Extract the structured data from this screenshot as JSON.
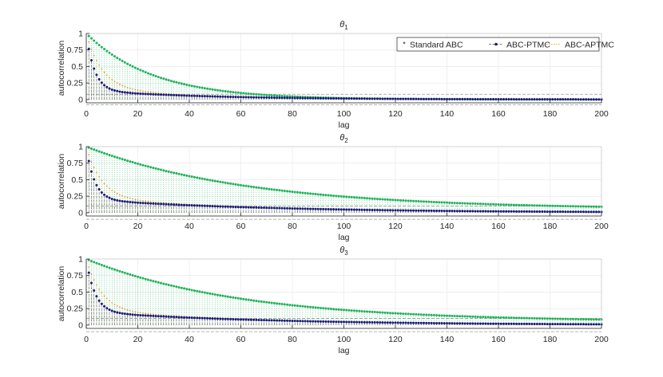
{
  "chart_data": [
    {
      "type": "stem",
      "title": "θ",
      "title_subscript": "1",
      "xlabel": "lag",
      "ylabel": "autocorrelation",
      "xlim": [
        0,
        200
      ],
      "ylim": [
        -0.05,
        1
      ],
      "xticks": [
        0,
        20,
        40,
        60,
        80,
        100,
        120,
        140,
        160,
        180,
        200
      ],
      "yticks": [
        0,
        0.25,
        0.5,
        0.75,
        1
      ],
      "ytick_labels": [
        "0",
        "0.25",
        "0.5",
        "0.75",
        "1"
      ],
      "grid": true,
      "legend_position": "top-right",
      "confidence_bounds": [
        0.08,
        -0.08
      ],
      "lags": [
        1,
        200
      ],
      "series": [
        {
          "name": "Standard ABC",
          "color": "#1fb35a",
          "marker": "*",
          "line_style": "dotted",
          "model": {
            "a": 0,
            "b": 1,
            "tau": 1,
            "c": 0,
            "tau2": 1,
            "d": 0,
            "e": 0.05,
            "tau3": 26
          }
        },
        {
          "name": "ABC-PTMC",
          "color": "#1a1a7a",
          "marker": "dot",
          "line_style": "dashdot",
          "model": {
            "a": 0.34,
            "b": 0.55,
            "tau": 3.2,
            "c": 0.14,
            "tau2": 45,
            "d": 0,
            "e": 0,
            "tau3": 1
          }
        },
        {
          "name": "ABC-APTMC",
          "color": "#f0a020",
          "marker": "none",
          "line_style": "dotted",
          "model": {
            "a": 0.4,
            "b": 0.42,
            "tau": 6,
            "c": 0.2,
            "tau2": 35,
            "d": 0,
            "e": 0,
            "tau3": 1
          }
        }
      ]
    },
    {
      "type": "stem",
      "title": "θ",
      "title_subscript": "2",
      "xlabel": "lag",
      "ylabel": "autocorrelation",
      "xlim": [
        0,
        200
      ],
      "ylim": [
        -0.05,
        1
      ],
      "xticks": [
        0,
        20,
        40,
        60,
        80,
        100,
        120,
        140,
        160,
        180,
        200
      ],
      "yticks": [
        0,
        0.25,
        0.5,
        0.75,
        1
      ],
      "ytick_labels": [
        "0",
        "0.25",
        "0.5",
        "0.75",
        "1"
      ],
      "grid": true,
      "confidence_bounds": [
        0.1,
        -0.1
      ],
      "lags": [
        1,
        200
      ],
      "series": [
        {
          "name": "Standard ABC",
          "color": "#1fb35a",
          "marker": "*",
          "line_style": "dotted",
          "model": {
            "a": 0,
            "b": 1,
            "tau": 1,
            "c": 0,
            "tau2": 1,
            "d": 0.05,
            "e": 0.95,
            "tau3": 63
          }
        },
        {
          "name": "ABC-PTMC",
          "color": "#1a1a7a",
          "marker": "dot",
          "line_style": "dashdot",
          "model": {
            "a": 0.38,
            "b": 0.45,
            "tau": 3.2,
            "c": 0.2,
            "tau2": 70,
            "d": 0,
            "e": 0,
            "tau3": 1
          }
        },
        {
          "name": "ABC-APTMC",
          "color": "#f0a020",
          "marker": "none",
          "line_style": "dotted",
          "model": {
            "a": 0.42,
            "b": 0.36,
            "tau": 6,
            "c": 0.22,
            "tau2": 70,
            "d": 0,
            "e": 0,
            "tau3": 1
          }
        }
      ]
    },
    {
      "type": "stem",
      "title": "θ",
      "title_subscript": "3",
      "xlabel": "lag",
      "ylabel": "autocorrelation",
      "xlim": [
        0,
        200
      ],
      "ylim": [
        -0.05,
        1
      ],
      "xticks": [
        0,
        20,
        40,
        60,
        80,
        100,
        120,
        140,
        160,
        180,
        200
      ],
      "yticks": [
        0,
        0.25,
        0.5,
        0.75,
        1
      ],
      "ytick_labels": [
        "0",
        "0.25",
        "0.5",
        "0.75",
        "1"
      ],
      "grid": true,
      "confidence_bounds": [
        0.1,
        -0.1
      ],
      "lags": [
        1,
        200
      ],
      "series": [
        {
          "name": "Standard ABC",
          "color": "#1fb35a",
          "marker": "*",
          "line_style": "dotted",
          "model": {
            "a": 0,
            "b": 1,
            "tau": 1,
            "c": 0,
            "tau2": 1,
            "d": 0.05,
            "e": 0.95,
            "tau3": 60
          }
        },
        {
          "name": "ABC-PTMC",
          "color": "#1a1a7a",
          "marker": "dot",
          "line_style": "dashdot",
          "model": {
            "a": 0.38,
            "b": 0.45,
            "tau": 3.4,
            "c": 0.2,
            "tau2": 70,
            "d": 0,
            "e": 0,
            "tau3": 1
          }
        },
        {
          "name": "ABC-APTMC",
          "color": "#f0a020",
          "marker": "none",
          "line_style": "dotted",
          "model": {
            "a": 0.42,
            "b": 0.36,
            "tau": 6,
            "c": 0.22,
            "tau2": 70,
            "d": 0,
            "e": 0,
            "tau3": 1
          }
        }
      ]
    }
  ]
}
